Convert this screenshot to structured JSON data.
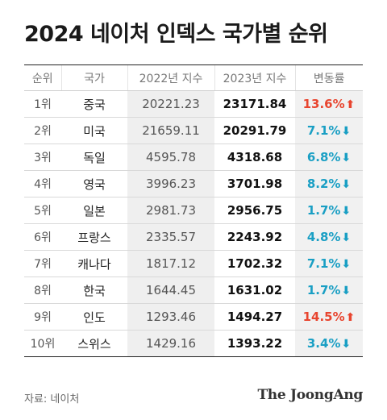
{
  "title": "2024 네이처 인덱스 국가별 순위",
  "headers": [
    "순위",
    "국가",
    "2022년 지수",
    "2023년 지수",
    "변동률"
  ],
  "rows": [
    {
      "rank": "1위",
      "country": "중국",
      "v2022": "20221.23",
      "v2023": "23171.84",
      "change": "13.6%",
      "dir": "up"
    },
    {
      "rank": "2위",
      "country": "미국",
      "v2022": "21659.11",
      "v2023": "20291.79",
      "change": "7.1%",
      "dir": "down"
    },
    {
      "rank": "3위",
      "country": "독일",
      "v2022": "4595.78",
      "v2023": "4318.68",
      "change": "6.8%",
      "dir": "down"
    },
    {
      "rank": "4위",
      "country": "영국",
      "v2022": "3996.23",
      "v2023": "3701.98",
      "change": "8.2%",
      "dir": "down"
    },
    {
      "rank": "5위",
      "country": "일본",
      "v2022": "2981.73",
      "v2023": "2956.75",
      "change": "1.7%",
      "dir": "down"
    },
    {
      "rank": "6위",
      "country": "프랑스",
      "v2022": "2335.57",
      "v2023": "2243.92",
      "change": "4.8%",
      "dir": "down"
    },
    {
      "rank": "7위",
      "country": "캐나다",
      "v2022": "1817.12",
      "v2023": "1702.32",
      "change": "7.1%",
      "dir": "down"
    },
    {
      "rank": "8위",
      "country": "한국",
      "v2022": "1644.45",
      "v2023": "1631.02",
      "change": "1.7%",
      "dir": "down"
    },
    {
      "rank": "9위",
      "country": "인도",
      "v2022": "1293.46",
      "v2023": "1494.27",
      "change": "14.5%",
      "dir": "up"
    },
    {
      "rank": "10위",
      "country": "스위스",
      "v2022": "1429.16",
      "v2023": "1393.22",
      "change": "3.4%",
      "dir": "down"
    }
  ],
  "icons": {
    "up": "arrow-up-icon",
    "down": "arrow-down-icon"
  },
  "colors": {
    "up": "#e8452f",
    "down": "#1a9fc4"
  },
  "source": "자료: 네이처",
  "brand": "The JoongAng"
}
